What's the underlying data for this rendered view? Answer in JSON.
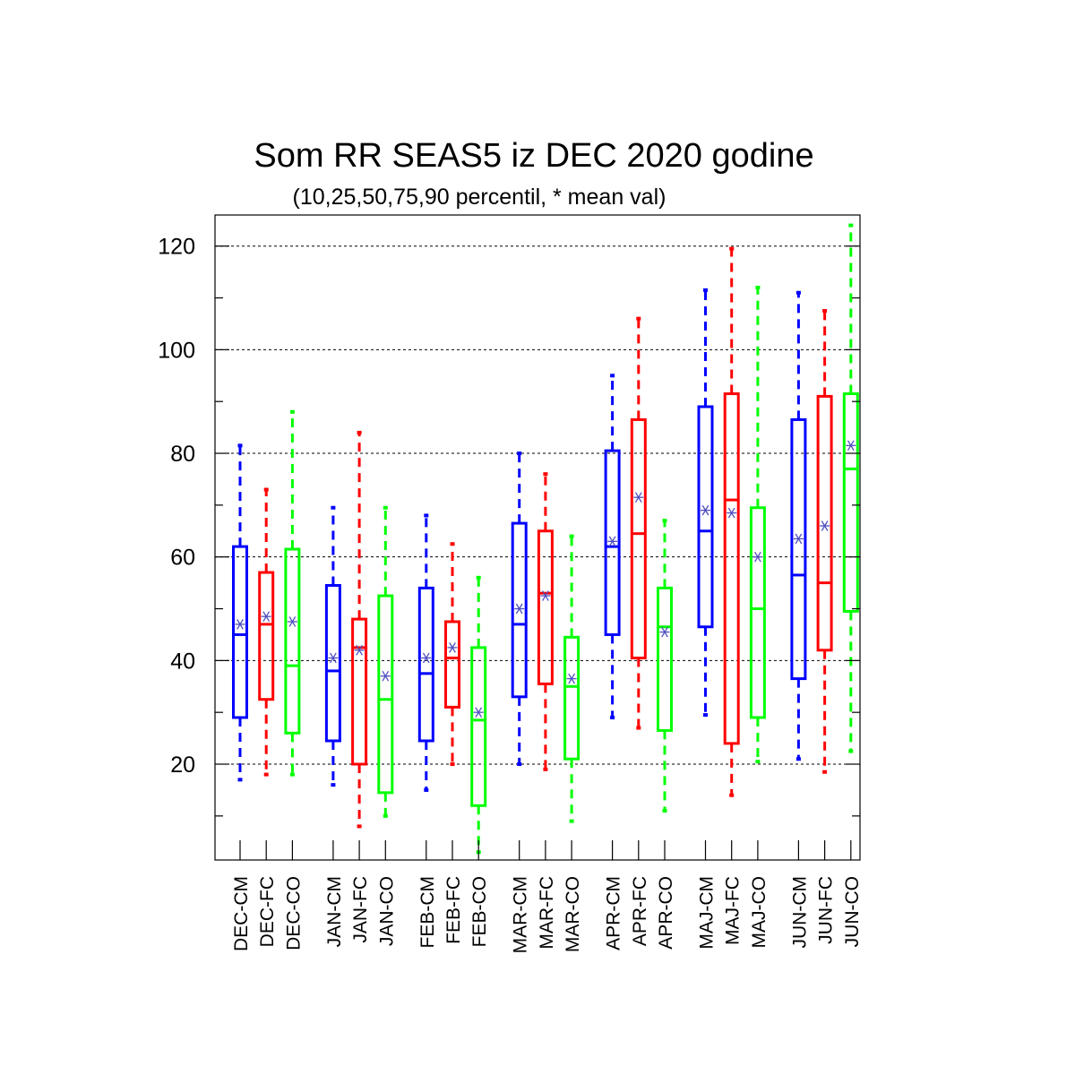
{
  "chart_data": {
    "type": "boxplot",
    "title": "Som RR SEAS5 iz DEC 2020 godine",
    "subtitle": "(10,25,50,75,90 percentil, * mean val)",
    "ylim": [
      1.5,
      126
    ],
    "yticks": [
      20,
      40,
      60,
      80,
      100,
      120
    ],
    "grid": true,
    "mean_marker": "*",
    "mean_color": "#5050c0",
    "series_colors": {
      "CM": "#0000ff",
      "FC": "#ff0000",
      "CO": "#00ff00"
    },
    "groups": [
      {
        "month": "DEC",
        "boxes": [
          {
            "label": "DEC-CM",
            "kind": "CM",
            "p10": 17,
            "p25": 29,
            "p50": 45,
            "p75": 62,
            "p90": 81.5,
            "mean": 47
          },
          {
            "label": "DEC-FC",
            "kind": "FC",
            "p10": 18,
            "p25": 32.5,
            "p50": 47,
            "p75": 57,
            "p90": 73,
            "mean": 48.5
          },
          {
            "label": "DEC-CO",
            "kind": "CO",
            "p10": 18,
            "p25": 26,
            "p50": 39,
            "p75": 61.5,
            "p90": 88,
            "mean": 47.5
          }
        ]
      },
      {
        "month": "JAN",
        "boxes": [
          {
            "label": "JAN-CM",
            "kind": "CM",
            "p10": 16,
            "p25": 24.5,
            "p50": 38,
            "p75": 54.5,
            "p90": 69.5,
            "mean": 40.5
          },
          {
            "label": "JAN-FC",
            "kind": "FC",
            "p10": 8,
            "p25": 20,
            "p50": 42.5,
            "p75": 48,
            "p90": 84,
            "mean": 42
          },
          {
            "label": "JAN-CO",
            "kind": "CO",
            "p10": 10,
            "p25": 14.5,
            "p50": 32.5,
            "p75": 52.5,
            "p90": 69.5,
            "mean": 37
          }
        ]
      },
      {
        "month": "FEB",
        "boxes": [
          {
            "label": "FEB-CM",
            "kind": "CM",
            "p10": 15,
            "p25": 24.5,
            "p50": 37.5,
            "p75": 54,
            "p90": 68,
            "mean": 40.5
          },
          {
            "label": "FEB-FC",
            "kind": "FC",
            "p10": 20,
            "p25": 31,
            "p50": 40.5,
            "p75": 47.5,
            "p90": 62.5,
            "mean": 42.5
          },
          {
            "label": "FEB-CO",
            "kind": "CO",
            "p10": 3,
            "p25": 12,
            "p50": 28.5,
            "p75": 42.5,
            "p90": 56,
            "mean": 30
          }
        ]
      },
      {
        "month": "MAR",
        "boxes": [
          {
            "label": "MAR-CM",
            "kind": "CM",
            "p10": 20,
            "p25": 33,
            "p50": 47,
            "p75": 66.5,
            "p90": 80,
            "mean": 50
          },
          {
            "label": "MAR-FC",
            "kind": "FC",
            "p10": 19,
            "p25": 35.5,
            "p50": 53,
            "p75": 65,
            "p90": 76,
            "mean": 52.5
          },
          {
            "label": "MAR-CO",
            "kind": "CO",
            "p10": 9,
            "p25": 21,
            "p50": 35,
            "p75": 44.5,
            "p90": 64,
            "mean": 36.5
          }
        ]
      },
      {
        "month": "APR",
        "boxes": [
          {
            "label": "APR-CM",
            "kind": "CM",
            "p10": 29,
            "p25": 45,
            "p50": 62,
            "p75": 80.5,
            "p90": 95,
            "mean": 63
          },
          {
            "label": "APR-FC",
            "kind": "FC",
            "p10": 27,
            "p25": 40.5,
            "p50": 64.5,
            "p75": 86.5,
            "p90": 106,
            "mean": 71.5
          },
          {
            "label": "APR-CO",
            "kind": "CO",
            "p10": 11,
            "p25": 26.5,
            "p50": 46.5,
            "p75": 54,
            "p90": 67,
            "mean": 45.5
          }
        ]
      },
      {
        "month": "MAJ",
        "boxes": [
          {
            "label": "MAJ-CM",
            "kind": "CM",
            "p10": 29.5,
            "p25": 46.5,
            "p50": 65,
            "p75": 89,
            "p90": 111.5,
            "mean": 69
          },
          {
            "label": "MAJ-FC",
            "kind": "FC",
            "p10": 14,
            "p25": 24,
            "p50": 71,
            "p75": 91.5,
            "p90": 119.5,
            "mean": 68.5
          },
          {
            "label": "MAJ-CO",
            "kind": "CO",
            "p10": 20.5,
            "p25": 29,
            "p50": 50,
            "p75": 69.5,
            "p90": 112,
            "mean": 60
          }
        ]
      },
      {
        "month": "JUN",
        "boxes": [
          {
            "label": "JUN-CM",
            "kind": "CM",
            "p10": 21,
            "p25": 36.5,
            "p50": 56.5,
            "p75": 86.5,
            "p90": 111,
            "mean": 63.5
          },
          {
            "label": "JUN-FC",
            "kind": "FC",
            "p10": 18.5,
            "p25": 42,
            "p50": 55,
            "p75": 91,
            "p90": 107.5,
            "mean": 66
          },
          {
            "label": "JUN-CO",
            "kind": "CO",
            "p10": 22.5,
            "p25": 49.5,
            "p50": 77,
            "p75": 91.5,
            "p90": 124,
            "mean": 81.5
          }
        ]
      }
    ]
  }
}
